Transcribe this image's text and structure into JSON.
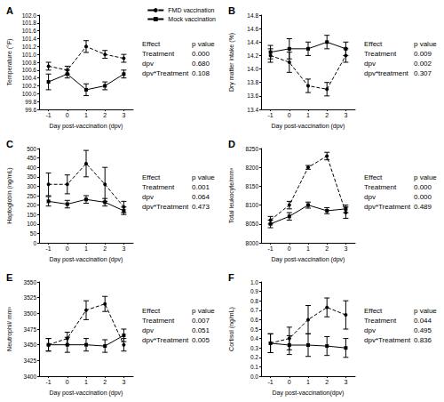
{
  "chart_data": [
    {
      "type": "line",
      "title": "A",
      "x_label": "Day post-vaccination (dpv)",
      "y_label": "Temperature (°F)",
      "categories": [
        "-1",
        "0",
        "1",
        "2",
        "3"
      ],
      "ylim": [
        99.6,
        102.0
      ],
      "yticks": [
        99.6,
        99.8,
        {
          "value": 100.0,
          "label": "100.0"
        },
        100.2,
        100.4,
        100.6,
        100.8,
        {
          "value": 101.0,
          "label": "101.0"
        },
        101.2,
        101.4,
        101.6,
        101.8,
        {
          "value": 102.0,
          "label": "102.0"
        }
      ],
      "grid": false,
      "legend": "upper right",
      "series": [
        {
          "name": "FMD vaccination",
          "color": "#000000",
          "line_style": "dashed",
          "marker": "circle",
          "values": [
            100.7,
            100.6,
            101.2,
            101.0,
            100.9
          ],
          "errors": [
            0.1,
            0.1,
            0.15,
            0.1,
            0.1
          ]
        },
        {
          "name": "Mock vaccination",
          "color": "#000000",
          "line_style": "solid",
          "marker": "square",
          "values": [
            100.3,
            100.5,
            100.1,
            100.2,
            100.5
          ],
          "errors": [
            0.2,
            0.1,
            0.15,
            0.1,
            0.1
          ]
        }
      ],
      "annotations": [
        [
          "Effect",
          "p value"
        ],
        [
          "Treatment",
          "0.000"
        ],
        [
          "dpv",
          "0.680"
        ],
        [
          "dpv*Treatment",
          "0.108"
        ]
      ]
    },
    {
      "type": "line",
      "title": "B",
      "x_label": "Day post-vaccination (dpv)",
      "y_label": "Dry matter intake (%)",
      "categories": [
        "-1",
        "0",
        "1",
        "2",
        "3"
      ],
      "ylim": [
        13.4,
        14.8
      ],
      "yticks": [
        13.4,
        13.6,
        13.8,
        {
          "value": 14.0,
          "label": "14.0"
        },
        14.2,
        14.4,
        14.6,
        14.8
      ],
      "grid": false,
      "series": [
        {
          "color": "#000000",
          "line_style": "dashed",
          "marker": "circle",
          "values": [
            14.2,
            14.1,
            13.75,
            13.7,
            14.2
          ],
          "errors": [
            0.1,
            0.15,
            0.1,
            0.1,
            0.1
          ]
        },
        {
          "color": "#000000",
          "line_style": "solid",
          "marker": "square",
          "values": [
            14.25,
            14.3,
            14.3,
            14.4,
            14.3
          ],
          "errors": [
            0.1,
            0.15,
            0.1,
            0.1,
            0.1
          ]
        }
      ],
      "annotations": [
        [
          "Effect",
          "p value"
        ],
        [
          "Treatment",
          "0.009"
        ],
        [
          "dpv",
          "0.002"
        ],
        [
          "dpv*treatment",
          "0.307"
        ]
      ]
    },
    {
      "type": "line",
      "title": "C",
      "x_label": "Day post-vaccination (dpv)",
      "y_label": "Haptoglobin (ng/mL)",
      "categories": [
        "-1",
        "0",
        "1",
        "2",
        "3"
      ],
      "ylim": [
        0,
        500
      ],
      "yticks": [
        0,
        50,
        100,
        150,
        200,
        250,
        300,
        350,
        400,
        450,
        500
      ],
      "grid": false,
      "series": [
        {
          "color": "#000000",
          "line_style": "dashed",
          "marker": "circle",
          "values": [
            310,
            310,
            420,
            310,
            190
          ],
          "errors": [
            60,
            50,
            70,
            90,
            30
          ]
        },
        {
          "color": "#000000",
          "line_style": "solid",
          "marker": "square",
          "values": [
            220,
            205,
            230,
            215,
            170
          ],
          "errors": [
            25,
            20,
            20,
            20,
            20
          ]
        }
      ],
      "annotations": [
        [
          "Effect",
          "p value"
        ],
        [
          "Treatment",
          "0.001"
        ],
        [
          "dpv",
          "0.064"
        ],
        [
          "dpv*Treatment",
          "0.473"
        ]
      ]
    },
    {
      "type": "line",
      "title": "D",
      "x_label": "Day post-vaccination (dpv)",
      "y_label": "Total leukocyte/mm³",
      "categories": [
        "-1",
        "0",
        "1",
        "2",
        "3"
      ],
      "ylim": [
        8000,
        8250
      ],
      "yticks": [
        8000,
        8050,
        8100,
        8150,
        8200,
        8250
      ],
      "grid": false,
      "series": [
        {
          "color": "#000000",
          "line_style": "dashed",
          "marker": "circle",
          "values": [
            8060,
            8100,
            8200,
            8230,
            8080
          ],
          "errors": [
            10,
            10,
            5,
            10,
            15
          ]
        },
        {
          "color": "#000000",
          "line_style": "solid",
          "marker": "square",
          "values": [
            8050,
            8070,
            8100,
            8085,
            8090
          ],
          "errors": [
            10,
            10,
            8,
            8,
            10
          ]
        }
      ],
      "annotations": [
        [
          "Effect",
          "p value"
        ],
        [
          "Treatment",
          "0.000"
        ],
        [
          "dpv",
          "0.000"
        ],
        [
          "dpv*Treatment",
          "0.489"
        ]
      ]
    },
    {
      "type": "line",
      "title": "E",
      "x_label": "Day post-vaccination (dpv)",
      "y_label": "Neutrophil/ mm³",
      "categories": [
        "-1",
        "0",
        "1",
        "2",
        "3"
      ],
      "ylim": [
        3400,
        3550
      ],
      "yticks": [
        3400,
        3425,
        3450,
        3475,
        3500,
        3525,
        3550
      ],
      "grid": false,
      "series": [
        {
          "color": "#000000",
          "line_style": "dashed",
          "marker": "circle",
          "values": [
            3450,
            3460,
            3505,
            3515,
            3450
          ],
          "errors": [
            10,
            10,
            15,
            12,
            10
          ]
        },
        {
          "color": "#000000",
          "line_style": "solid",
          "marker": "square",
          "values": [
            3450,
            3450,
            3450,
            3448,
            3465
          ],
          "errors": [
            10,
            12,
            10,
            10,
            10
          ]
        }
      ],
      "annotations": [
        [
          "Effect",
          "p value"
        ],
        [
          "Treatment",
          "0.007"
        ],
        [
          "dpv",
          "0.051"
        ],
        [
          "dpv*Treatment",
          "0.005"
        ]
      ]
    },
    {
      "type": "line",
      "title": "F",
      "x_label": "Day post-vaccination(dpv)",
      "y_label": "Cortisol (ng/mL)",
      "categories": [
        "-1",
        "0",
        "1",
        "2",
        "3"
      ],
      "ylim": [
        0,
        1.0
      ],
      "yticks": [
        {
          "value": 0,
          "label": "0.0"
        },
        0.1,
        0.2,
        0.3,
        0.4,
        0.5,
        0.6,
        0.7,
        0.8,
        0.9,
        {
          "value": 1.0,
          "label": "1.0"
        }
      ],
      "grid": false,
      "series": [
        {
          "color": "#000000",
          "line_style": "dashed",
          "marker": "circle",
          "values": [
            0.35,
            0.4,
            0.6,
            0.73,
            0.65
          ],
          "errors": [
            0.1,
            0.12,
            0.15,
            0.1,
            0.15
          ]
        },
        {
          "color": "#000000",
          "line_style": "solid",
          "marker": "square",
          "values": [
            0.35,
            0.33,
            0.33,
            0.32,
            0.3
          ],
          "errors": [
            0.1,
            0.1,
            0.12,
            0.1,
            0.1
          ]
        }
      ],
      "annotations": [
        [
          "Effect",
          "p value"
        ],
        [
          "Treatment",
          "0.044"
        ],
        [
          "dpv",
          "0.495"
        ],
        [
          "dpv*Treatment",
          "0.836"
        ]
      ]
    }
  ]
}
